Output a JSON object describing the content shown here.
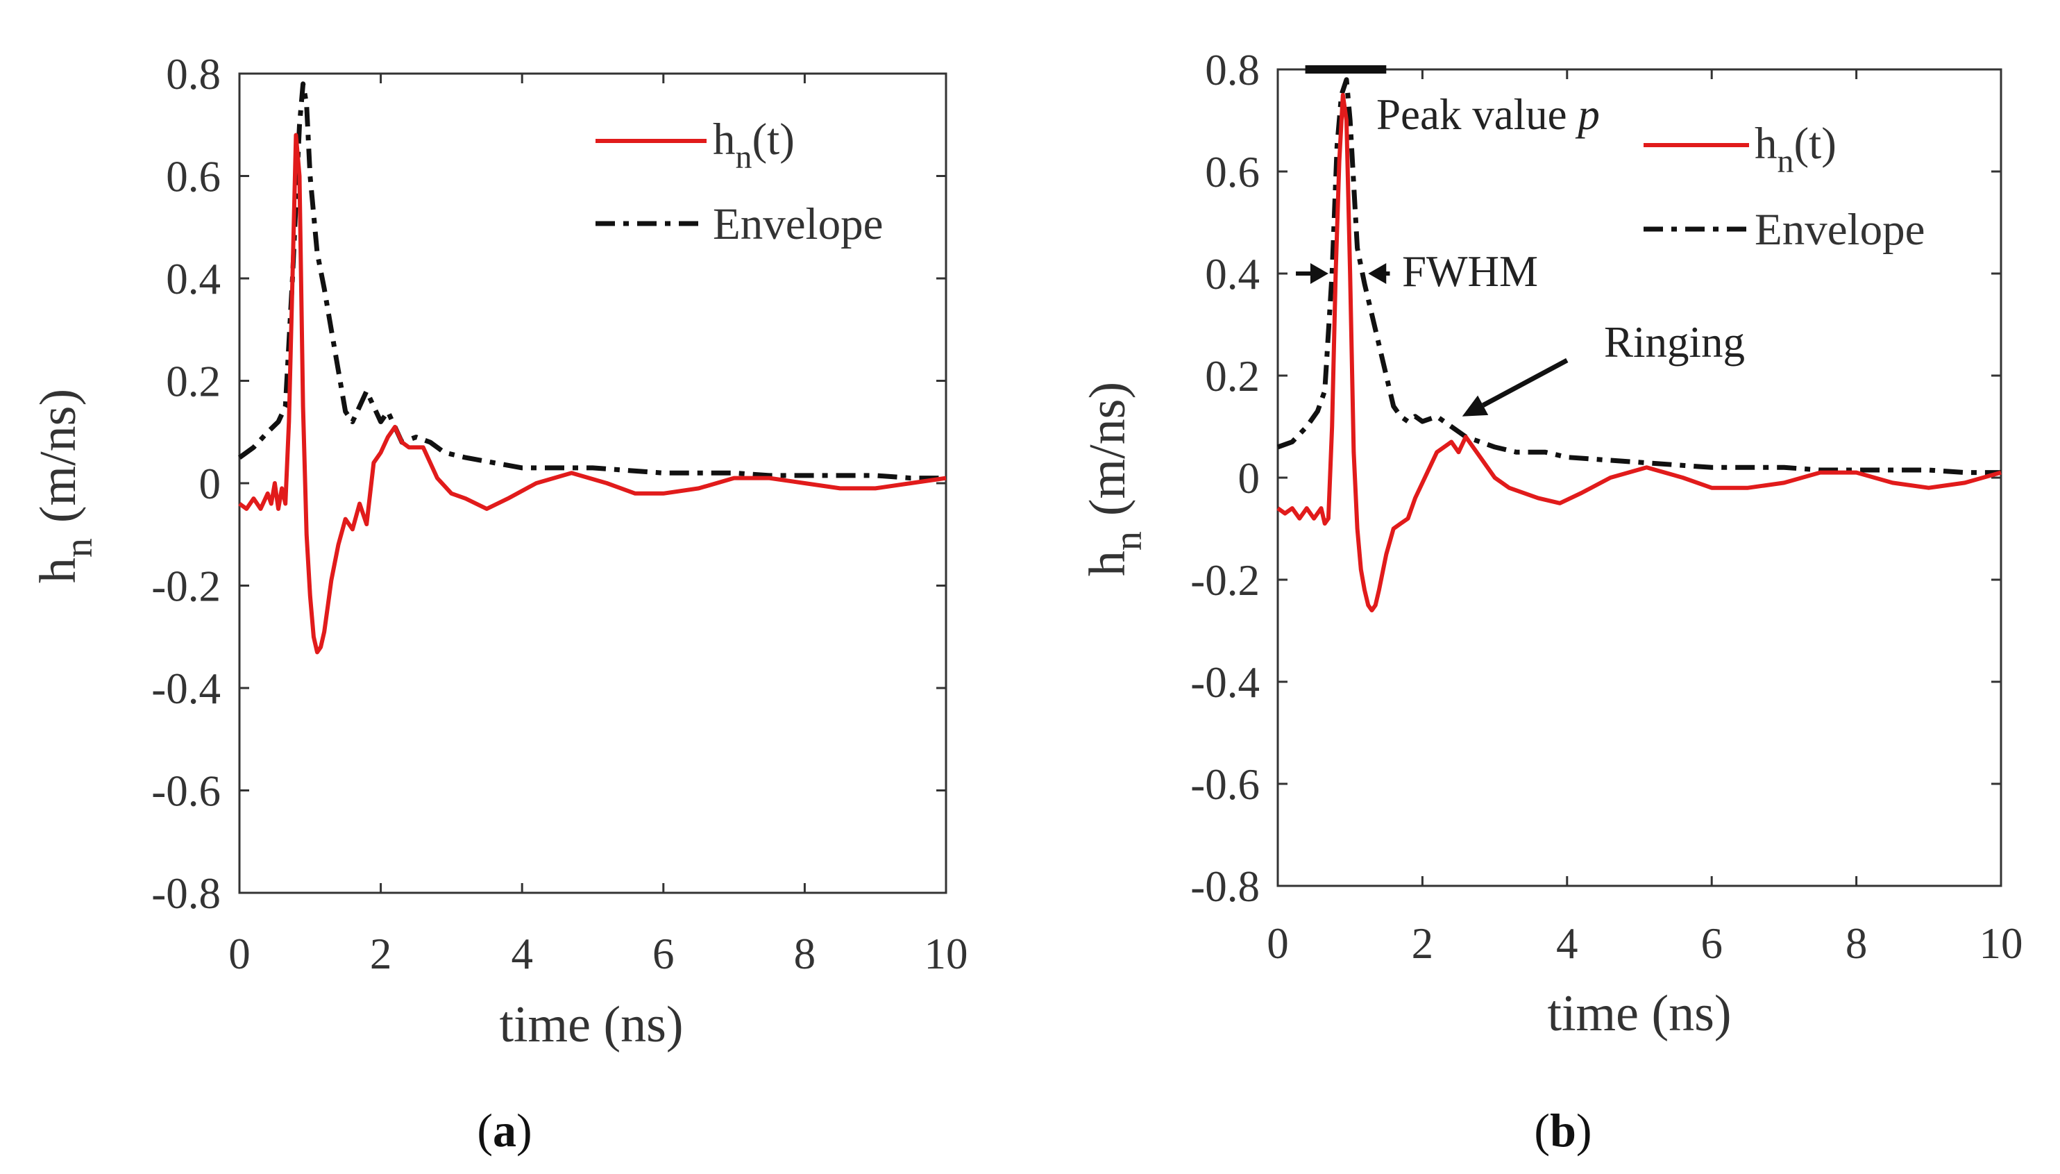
{
  "colors": {
    "hn": "#e11b1b",
    "envelope": "#111111",
    "axes": "#333333"
  },
  "chart_data": [
    {
      "type": "line",
      "panel": "(a)",
      "caption_open": "(",
      "caption_letter": "a",
      "caption_close": ")",
      "xlabel": "time (ns)",
      "ylabel_main": "h",
      "ylabel_sub": "n",
      "ylabel_unit": "(m/ns)",
      "xlim": [
        0,
        10
      ],
      "ylim": [
        -0.8,
        0.8
      ],
      "xticks": [
        0,
        2,
        4,
        6,
        8,
        10
      ],
      "xtick_labels": [
        "0",
        "2",
        "4",
        "6",
        "8",
        "10"
      ],
      "yticks": [
        -0.8,
        -0.6,
        -0.4,
        -0.2,
        0,
        0.2,
        0.4,
        0.6,
        0.8
      ],
      "ytick_labels": [
        "-0.8",
        "-0.6",
        "-0.4",
        "-0.2",
        "0",
        "0.2",
        "0.4",
        "0.6",
        "0.8"
      ],
      "legend": {
        "placement": "top-right",
        "entries": [
          {
            "main": "h",
            "sub": "n",
            "rest": "(t)",
            "style": "solid"
          },
          {
            "main": "Envelope",
            "sub": "",
            "rest": "",
            "style": "dash-dot"
          }
        ]
      },
      "series": [
        {
          "name": "h_n(t)",
          "style": "solid",
          "x": [
            0,
            0.1,
            0.2,
            0.3,
            0.4,
            0.45,
            0.5,
            0.55,
            0.6,
            0.65,
            0.7,
            0.75,
            0.8,
            0.85,
            0.9,
            0.95,
            1.0,
            1.05,
            1.1,
            1.15,
            1.2,
            1.25,
            1.3,
            1.4,
            1.5,
            1.6,
            1.7,
            1.8,
            1.9,
            2.0,
            2.1,
            2.2,
            2.3,
            2.4,
            2.6,
            2.8,
            3.0,
            3.2,
            3.5,
            3.8,
            4.2,
            4.7,
            5.2,
            5.6,
            6.0,
            6.5,
            7.0,
            7.5,
            8.0,
            8.5,
            9.0,
            9.5,
            10
          ],
          "y": [
            -0.04,
            -0.05,
            -0.03,
            -0.05,
            -0.02,
            -0.04,
            0.0,
            -0.05,
            -0.01,
            -0.04,
            0.12,
            0.4,
            0.68,
            0.6,
            0.15,
            -0.1,
            -0.22,
            -0.3,
            -0.33,
            -0.32,
            -0.29,
            -0.24,
            -0.19,
            -0.12,
            -0.07,
            -0.09,
            -0.04,
            -0.08,
            0.04,
            0.06,
            0.09,
            0.11,
            0.08,
            0.07,
            0.07,
            0.01,
            -0.02,
            -0.03,
            -0.05,
            -0.03,
            0.0,
            0.02,
            0.0,
            -0.02,
            -0.02,
            -0.01,
            0.01,
            0.01,
            0.0,
            -0.01,
            -0.01,
            0.0,
            0.01
          ]
        },
        {
          "name": "Envelope",
          "style": "dash-dot",
          "x": [
            0,
            0.2,
            0.4,
            0.55,
            0.65,
            0.75,
            0.85,
            0.9,
            0.95,
            1.0,
            1.1,
            1.2,
            1.3,
            1.4,
            1.5,
            1.6,
            1.7,
            1.8,
            1.9,
            2.0,
            2.1,
            2.2,
            2.3,
            2.5,
            2.7,
            2.9,
            3.2,
            3.6,
            4.0,
            4.5,
            5.0,
            5.5,
            6.0,
            6.5,
            7.0,
            7.5,
            8.0,
            8.5,
            9.0,
            9.5,
            10
          ],
          "y": [
            0.05,
            0.07,
            0.1,
            0.12,
            0.15,
            0.4,
            0.7,
            0.78,
            0.74,
            0.6,
            0.45,
            0.38,
            0.3,
            0.22,
            0.14,
            0.12,
            0.15,
            0.18,
            0.15,
            0.12,
            0.14,
            0.11,
            0.08,
            0.09,
            0.08,
            0.06,
            0.05,
            0.04,
            0.03,
            0.03,
            0.03,
            0.025,
            0.02,
            0.02,
            0.02,
            0.015,
            0.015,
            0.015,
            0.015,
            0.01,
            0.01
          ]
        }
      ]
    },
    {
      "type": "line",
      "panel": "(b)",
      "caption_open": "(",
      "caption_letter": "b",
      "caption_close": ")",
      "xlabel": "time (ns)",
      "ylabel_main": "h",
      "ylabel_sub": "n",
      "ylabel_unit": "(m/ns)",
      "xlim": [
        0,
        10
      ],
      "ylim": [
        -0.8,
        0.8
      ],
      "xticks": [
        0,
        2,
        4,
        6,
        8,
        10
      ],
      "xtick_labels": [
        "0",
        "2",
        "4",
        "6",
        "8",
        "10"
      ],
      "yticks": [
        -0.8,
        -0.6,
        -0.4,
        -0.2,
        0,
        0.2,
        0.4,
        0.6,
        0.8
      ],
      "ytick_labels": [
        "-0.8",
        "-0.6",
        "-0.4",
        "-0.2",
        "0",
        "0.2",
        "0.4",
        "0.6",
        "0.8"
      ],
      "legend": {
        "placement": "top-right",
        "entries": [
          {
            "main": "h",
            "sub": "n",
            "rest": "(t)",
            "style": "solid"
          },
          {
            "main": "Envelope",
            "sub": "",
            "rest": "",
            "style": "dash-dot"
          }
        ]
      },
      "annotations": {
        "peak_label": "Peak value ",
        "peak_symbol": "p",
        "fwhm_label": "FWHM",
        "ringing_label": "Ringing",
        "peak_bar": {
          "x0": 0.38,
          "x1": 1.5,
          "y": 0.8
        },
        "fwhm_arrows": {
          "y": 0.4,
          "left_tip": 0.7,
          "left_tail": 0.25,
          "right_tip": 1.25,
          "right_tail": 1.55
        },
        "ringing_arrow": {
          "from": [
            4.0,
            0.23
          ],
          "to": [
            2.55,
            0.12
          ]
        }
      },
      "series": [
        {
          "name": "h_n(t)",
          "style": "solid",
          "x": [
            0,
            0.1,
            0.2,
            0.3,
            0.4,
            0.5,
            0.6,
            0.65,
            0.7,
            0.75,
            0.8,
            0.85,
            0.9,
            0.95,
            1.0,
            1.05,
            1.1,
            1.15,
            1.2,
            1.25,
            1.3,
            1.35,
            1.4,
            1.5,
            1.6,
            1.7,
            1.8,
            1.9,
            2.0,
            2.2,
            2.4,
            2.5,
            2.6,
            2.7,
            2.8,
            3.0,
            3.2,
            3.6,
            3.9,
            4.2,
            4.6,
            5.1,
            5.6,
            6.0,
            6.5,
            7.0,
            7.5,
            8.0,
            8.5,
            9.0,
            9.5,
            10
          ],
          "y": [
            -0.06,
            -0.07,
            -0.06,
            -0.08,
            -0.06,
            -0.08,
            -0.06,
            -0.09,
            -0.08,
            0.1,
            0.4,
            0.62,
            0.75,
            0.7,
            0.4,
            0.05,
            -0.1,
            -0.18,
            -0.22,
            -0.25,
            -0.26,
            -0.25,
            -0.22,
            -0.15,
            -0.1,
            -0.09,
            -0.08,
            -0.04,
            -0.01,
            0.05,
            0.07,
            0.05,
            0.08,
            0.06,
            0.04,
            0.0,
            -0.02,
            -0.04,
            -0.05,
            -0.03,
            0.0,
            0.02,
            0.0,
            -0.02,
            -0.02,
            -0.01,
            0.01,
            0.01,
            -0.01,
            -0.02,
            -0.01,
            0.01
          ]
        },
        {
          "name": "Envelope",
          "style": "dash-dot",
          "x": [
            0,
            0.2,
            0.4,
            0.55,
            0.65,
            0.75,
            0.82,
            0.88,
            0.95,
            1.0,
            1.1,
            1.2,
            1.3,
            1.4,
            1.5,
            1.6,
            1.7,
            1.8,
            1.9,
            2.0,
            2.2,
            2.4,
            2.6,
            2.8,
            3.0,
            3.3,
            3.7,
            4.0,
            4.5,
            5.0,
            5.5,
            6.0,
            6.5,
            7.0,
            7.5,
            8.0,
            8.5,
            9.0,
            9.5,
            10
          ],
          "y": [
            0.06,
            0.07,
            0.1,
            0.13,
            0.17,
            0.4,
            0.65,
            0.75,
            0.78,
            0.7,
            0.45,
            0.38,
            0.32,
            0.26,
            0.2,
            0.14,
            0.12,
            0.11,
            0.12,
            0.11,
            0.12,
            0.1,
            0.08,
            0.07,
            0.06,
            0.05,
            0.05,
            0.04,
            0.035,
            0.03,
            0.025,
            0.02,
            0.02,
            0.02,
            0.015,
            0.015,
            0.015,
            0.015,
            0.01,
            0.01
          ]
        }
      ]
    }
  ]
}
